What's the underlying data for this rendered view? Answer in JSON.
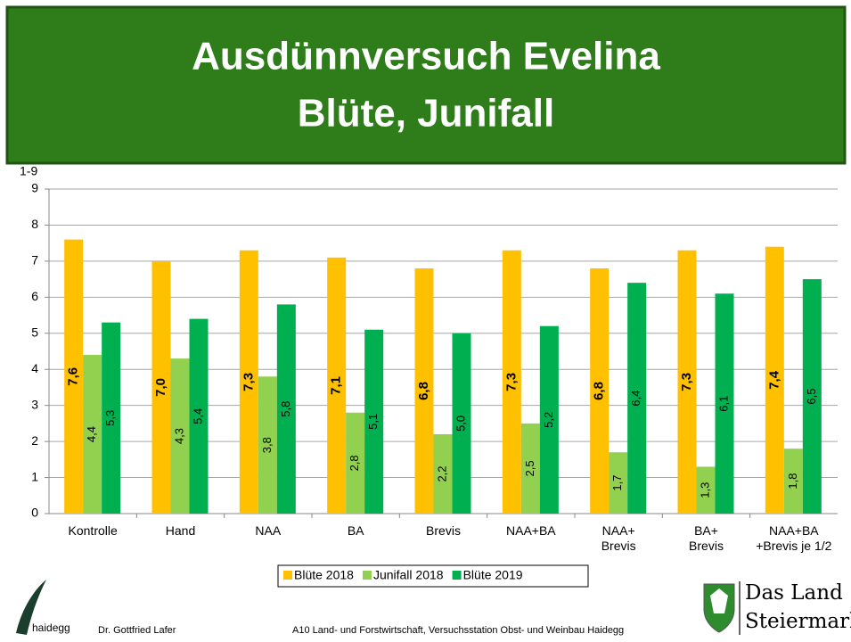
{
  "header": {
    "title": "Ausdünnversuch Evelina",
    "subtitle": "Blüte, Junifall"
  },
  "chart_data": {
    "type": "bar",
    "y_label": "1-9",
    "categories": [
      "Kontrolle",
      "Hand",
      "NAA",
      "BA",
      "Brevis",
      "NAA+BA",
      "NAA+\nBrevis",
      "BA+\nBrevis",
      "NAA+BA\n+Brevis je 1/2"
    ],
    "series": [
      {
        "name": "Blüte 2018",
        "color": "#ffc000",
        "values": [
          7.6,
          7.0,
          7.3,
          7.1,
          6.8,
          7.3,
          6.8,
          7.3,
          7.4
        ],
        "value_labels": [
          "7,6",
          "7,0",
          "7,3",
          "7,1",
          "6,8",
          "7,3",
          "6,8",
          "7,3",
          "7,4"
        ]
      },
      {
        "name": "Junifall 2018",
        "color": "#92d050",
        "values": [
          4.4,
          4.3,
          3.8,
          2.8,
          2.2,
          2.5,
          1.7,
          1.3,
          1.8
        ],
        "value_labels": [
          "4,4",
          "4,3",
          "3,8",
          "2,8",
          "2,2",
          "2,5",
          "1,7",
          "1,3",
          "1,8"
        ]
      },
      {
        "name": "Blüte 2019",
        "color": "#00b050",
        "values": [
          5.3,
          5.4,
          5.8,
          5.1,
          5.0,
          5.2,
          6.4,
          6.1,
          6.5
        ],
        "value_labels": [
          "5,3",
          "5,4",
          "5,8",
          "5,1",
          "5,0",
          "5,2",
          "6,4",
          "6,1",
          "6,5"
        ]
      }
    ],
    "ylim": [
      0,
      9
    ],
    "yticks": [
      0,
      1,
      2,
      3,
      4,
      5,
      6,
      7,
      8,
      9
    ],
    "grid": true,
    "legend": "bottom"
  },
  "footer": {
    "logo_text": "haidegg",
    "author": "Dr. Gottfried Lafer",
    "institution": "A10 Land- und Forstwirtschaft, Versuchsstation Obst- und Weinbau Haidegg",
    "brand_line1": "Das Land",
    "brand_line2": "Steiermark"
  }
}
